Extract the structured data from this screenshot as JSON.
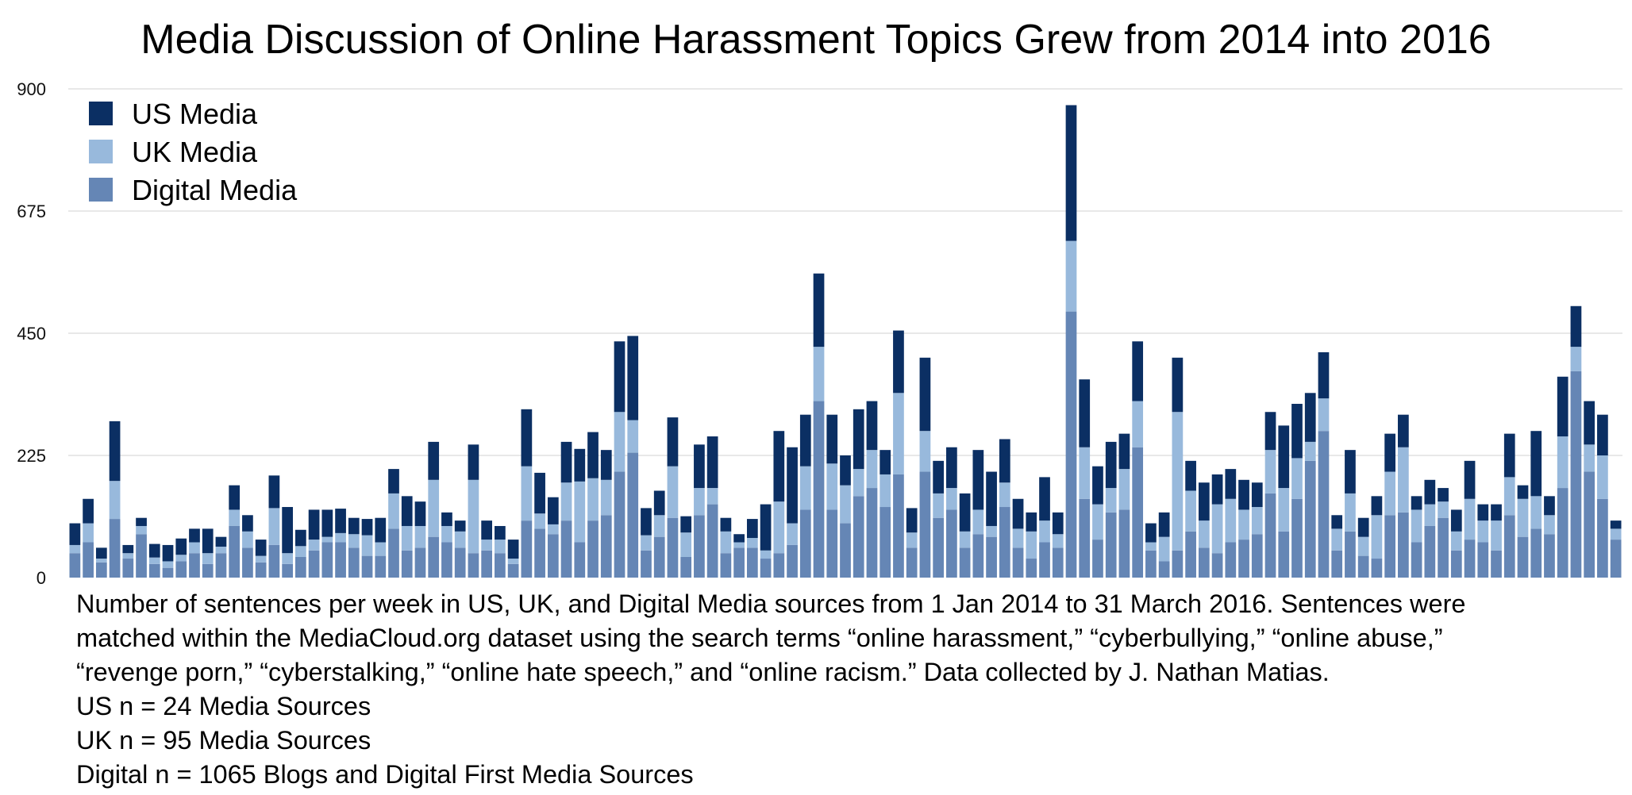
{
  "chart_data": {
    "type": "bar",
    "stacked": true,
    "title": "Media Discussion of Online Harassment Topics Grew from 2014 into 2016",
    "xlabel": "",
    "ylabel": "",
    "ylim": [
      0,
      900
    ],
    "yticks": [
      0,
      225,
      450,
      675,
      900
    ],
    "grid": true,
    "legend_position": "top-left",
    "colors": {
      "US Media": "#0b2f63",
      "UK Media": "#98b9dc",
      "Digital Media": "#6586b5",
      "gridline": "#d9d9d9"
    },
    "series": [
      {
        "name": "Digital Media",
        "values": [
          45,
          65,
          28,
          108,
          35,
          80,
          25,
          18,
          30,
          45,
          25,
          45,
          95,
          55,
          28,
          60,
          25,
          38,
          50,
          65,
          65,
          55,
          40,
          40,
          90,
          50,
          55,
          75,
          65,
          55,
          45,
          50,
          45,
          25,
          105,
          90,
          80,
          105,
          65,
          105,
          115,
          195,
          230,
          50,
          75,
          110,
          38,
          115,
          135,
          45,
          55,
          55,
          35,
          45,
          60,
          125,
          325,
          125,
          100,
          150,
          165,
          130,
          190,
          55,
          195,
          110,
          125,
          55,
          80,
          75,
          130,
          55,
          35,
          65,
          55,
          490,
          145,
          70,
          120,
          125,
          240,
          50,
          30,
          50,
          85,
          55,
          45,
          65,
          70,
          80,
          155,
          85,
          145,
          215,
          270,
          50,
          85,
          40,
          35,
          115,
          120,
          65,
          95,
          110,
          50,
          70,
          65,
          50,
          115,
          75,
          90,
          80,
          165,
          380,
          195,
          145,
          70
        ]
      },
      {
        "name": "UK Media",
        "values": [
          15,
          35,
          7,
          70,
          10,
          15,
          12,
          12,
          12,
          20,
          20,
          12,
          30,
          30,
          12,
          68,
          20,
          20,
          20,
          10,
          17,
          25,
          38,
          25,
          65,
          45,
          40,
          105,
          30,
          30,
          135,
          20,
          25,
          10,
          100,
          28,
          18,
          70,
          112,
          78,
          65,
          110,
          60,
          28,
          40,
          95,
          45,
          50,
          30,
          40,
          10,
          18,
          15,
          95,
          40,
          80,
          100,
          85,
          70,
          50,
          70,
          60,
          150,
          28,
          75,
          45,
          40,
          30,
          45,
          20,
          45,
          35,
          50,
          40,
          25,
          130,
          95,
          65,
          45,
          75,
          85,
          15,
          45,
          255,
          75,
          50,
          90,
          80,
          55,
          50,
          80,
          80,
          75,
          35,
          60,
          40,
          70,
          35,
          80,
          80,
          120,
          60,
          40,
          30,
          35,
          75,
          40,
          55,
          70,
          70,
          60,
          35,
          95,
          45,
          50,
          80,
          20
        ]
      },
      {
        "name": "US Media",
        "values": [
          40,
          45,
          20,
          110,
          15,
          15,
          25,
          30,
          30,
          25,
          45,
          18,
          45,
          30,
          30,
          60,
          85,
          30,
          55,
          50,
          45,
          30,
          30,
          45,
          45,
          55,
          45,
          70,
          25,
          20,
          65,
          35,
          25,
          35,
          105,
          75,
          50,
          75,
          60,
          85,
          55,
          130,
          155,
          50,
          45,
          90,
          30,
          80,
          95,
          25,
          15,
          35,
          85,
          130,
          140,
          95,
          135,
          90,
          55,
          110,
          90,
          45,
          115,
          45,
          135,
          60,
          75,
          70,
          110,
          100,
          80,
          55,
          35,
          80,
          40,
          250,
          125,
          70,
          85,
          65,
          110,
          35,
          45,
          100,
          55,
          70,
          55,
          55,
          55,
          45,
          70,
          115,
          100,
          90,
          85,
          25,
          80,
          35,
          35,
          70,
          60,
          25,
          45,
          25,
          40,
          70,
          30,
          30,
          80,
          25,
          120,
          35,
          110,
          75,
          80,
          75,
          15
        ]
      }
    ],
    "x_range": "1 Jan 2014 to 31 March 2016 (weekly)"
  },
  "caption": {
    "line1": "Number of sentences per week in US, UK, and Digital Media sources from 1 Jan 2014 to 31 March 2016. Sentences were",
    "line2": "matched within the MediaCloud.org dataset using the search terms “online harassment,”  “cyberbullying,” “online abuse,”",
    "line3": "“revenge porn,” “cyberstalking,” “online hate speech,” and “online racism.” Data collected by J. Nathan Matias.",
    "line4": "US n = 24 Media Sources",
    "line5": "UK n = 95 Media Sources",
    "line6": "Digital n = 1065 Blogs and Digital First Media Sources"
  }
}
